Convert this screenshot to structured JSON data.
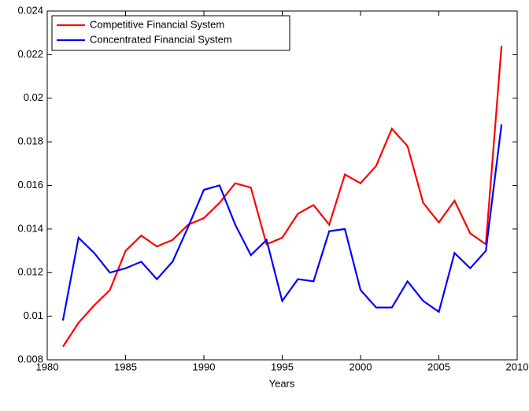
{
  "chart_data": {
    "type": "line",
    "xlabel": "Years",
    "x": [
      1981,
      1982,
      1983,
      1984,
      1985,
      1986,
      1987,
      1988,
      1989,
      1990,
      1991,
      1992,
      1993,
      1994,
      1995,
      1996,
      1997,
      1998,
      1999,
      2000,
      2001,
      2002,
      2003,
      2004,
      2005,
      2006,
      2007,
      2008,
      2009
    ],
    "series": [
      {
        "name": "Competitive Financial System",
        "color": "#ff0000",
        "values": [
          0.0086,
          0.0097,
          0.0105,
          0.0112,
          0.013,
          0.0137,
          0.0132,
          0.0135,
          0.0142,
          0.0145,
          0.0152,
          0.0161,
          0.0159,
          0.0133,
          0.0136,
          0.0147,
          0.0151,
          0.0142,
          0.0165,
          0.0161,
          0.0169,
          0.0186,
          0.0178,
          0.0152,
          0.0143,
          0.0153,
          0.0138,
          0.0133,
          0.0224
        ]
      },
      {
        "name": "Concentrated Financial System",
        "color": "#0000ff",
        "values": [
          0.0098,
          0.0136,
          0.0129,
          0.012,
          0.0122,
          0.0125,
          0.0117,
          0.0125,
          0.0141,
          0.0158,
          0.016,
          0.0142,
          0.0128,
          0.0135,
          0.0107,
          0.0117,
          0.0116,
          0.0139,
          0.014,
          0.0112,
          0.0104,
          0.0104,
          0.0116,
          0.0107,
          0.0102,
          0.0129,
          0.0122,
          0.013,
          0.0188
        ]
      }
    ],
    "xlim": [
      1980,
      2010
    ],
    "xticks": [
      1980,
      1985,
      1990,
      1995,
      2000,
      2005,
      2010
    ],
    "ylim": [
      0.008,
      0.024
    ],
    "yticks": [
      0.008,
      0.01,
      0.012,
      0.014,
      0.016,
      0.018,
      0.02,
      0.022,
      0.024
    ],
    "grid": false,
    "legend": "upper left"
  }
}
